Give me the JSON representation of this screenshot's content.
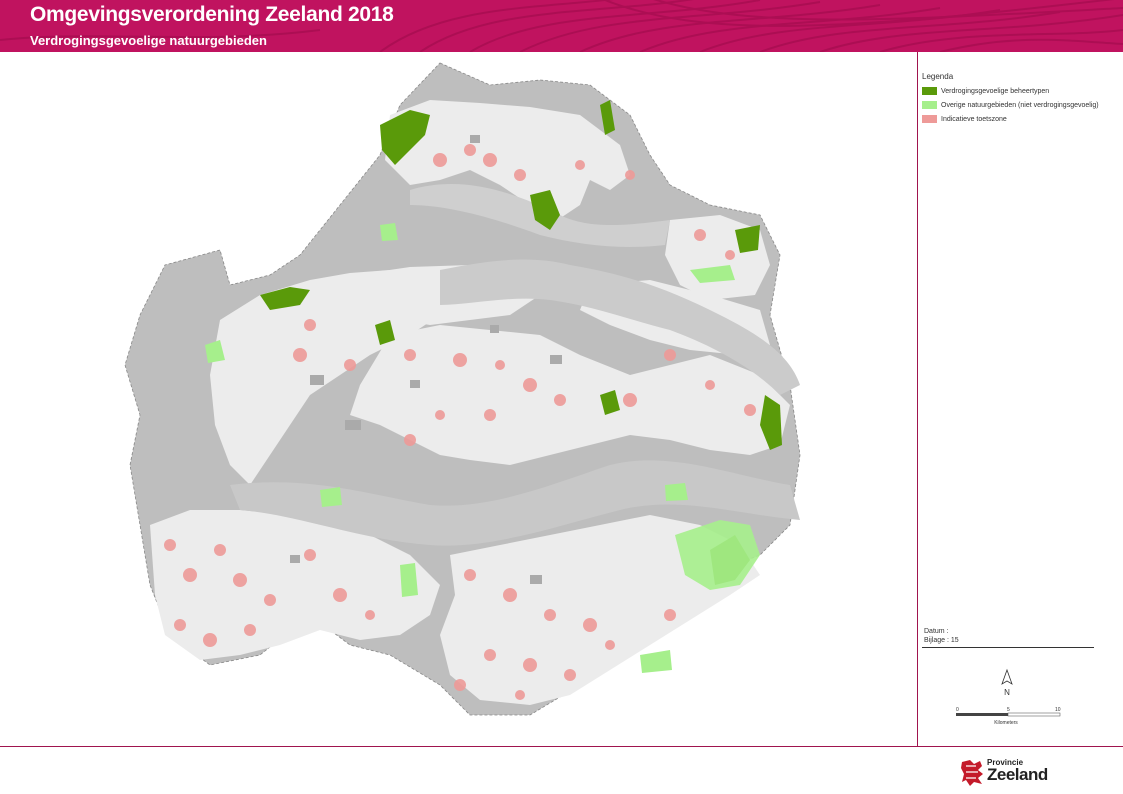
{
  "header": {
    "title": "Omgevingsverordening Zeeland 2018",
    "subtitle": "Verdrogingsgevoelige natuurgebieden",
    "banner_color": "#c0135f"
  },
  "legend": {
    "title": "Legenda",
    "items": [
      {
        "label": "Verdrogingsgevoelige beheertypen",
        "color": "#5a9a0a"
      },
      {
        "label": "Overige natuurgebieden (niet verdrogingsgevoelig)",
        "color": "#a6ef8c"
      },
      {
        "label": "Indicatieve toetszone",
        "color": "#ee9a98"
      }
    ]
  },
  "info": {
    "datum": "Datum :",
    "bijlage": "Bijlage : 15"
  },
  "north_arrow": {
    "label": "N"
  },
  "scale": {
    "ticks": [
      "0",
      "5",
      "10"
    ],
    "unit": "Kilometers"
  },
  "logo": {
    "line1": "Provincie",
    "line2": "Zeeland"
  },
  "map": {
    "land_color": "#ececec",
    "water_color": "#d2d2d2",
    "sea_color": "#bebebe"
  }
}
